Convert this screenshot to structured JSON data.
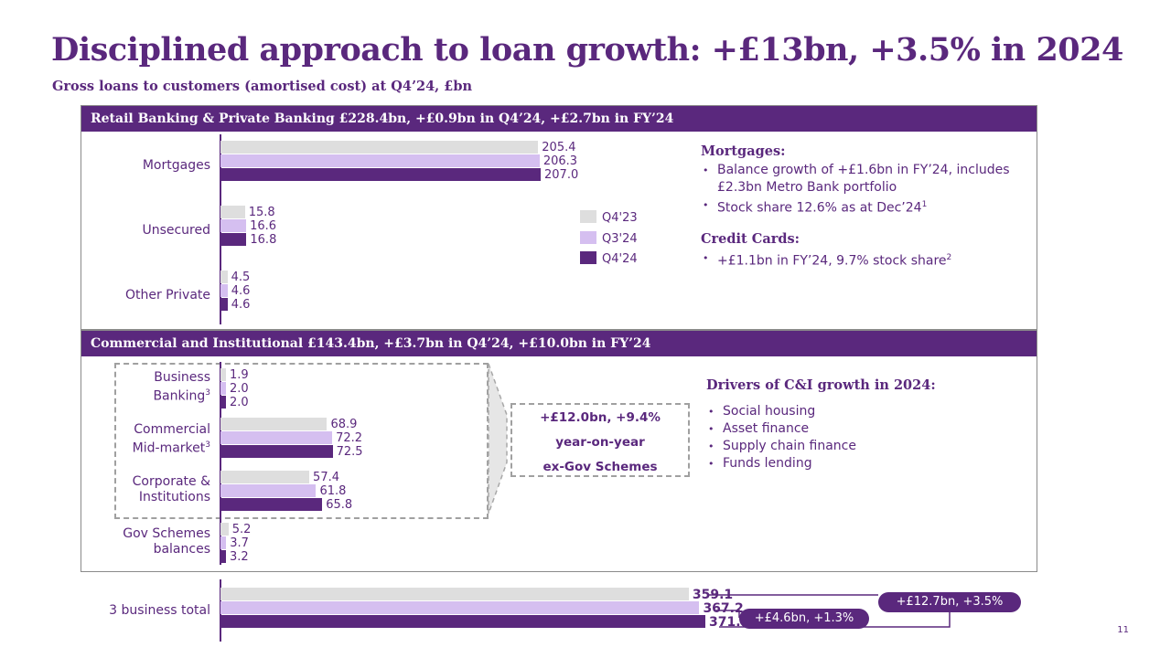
{
  "title": "Disciplined approach to loan growth: +£13bn, +3.5% in 2024",
  "subtitle": "Gross loans to customers (amortised cost) at Q4’24, £bn",
  "page_number": "11",
  "colors": {
    "q4_23": "#dedede",
    "q3_24": "#d5bff0",
    "q4_24": "#5a287d",
    "accent": "#5a287d"
  },
  "legend": [
    {
      "label": "Q4'23",
      "color": "#dedede"
    },
    {
      "label": "Q3'24",
      "color": "#d5bff0"
    },
    {
      "label": "Q4'24",
      "color": "#5a287d"
    }
  ],
  "retail_panel": {
    "header": "Retail Banking & Private Banking £228.4bn, +£0.9bn in Q4’24, +£2.7bn in FY’24",
    "notes": [
      {
        "heading": "Mortgages:",
        "bullets": [
          "Balance growth of +£1.6bn in FY’24, includes £2.3bn Metro Bank portfolio",
          "Stock share 12.6% as at Dec’24"
        ],
        "sups": [
          "",
          "1"
        ]
      },
      {
        "heading": "Credit Cards:",
        "bullets": [
          "+£1.1bn in FY’24, 9.7% stock share"
        ],
        "sups": [
          "2"
        ]
      }
    ]
  },
  "ci_panel": {
    "header": "Commercial and Institutional £143.4bn, +£3.7bn in Q4’24, +£10.0bn in FY’24",
    "callout": [
      "+£12.0bn, +9.4%",
      "year-on-year",
      "ex-Gov Schemes"
    ],
    "drivers_heading": "Drivers of C&I growth in 2024:",
    "drivers": [
      "Social housing",
      "Asset finance",
      "Supply chain finance",
      "Funds lending"
    ]
  },
  "total": {
    "label": "3 business total",
    "pill_fy": "+£12.7bn, +3.5%",
    "pill_q": "+£4.6bn, +1.3%"
  },
  "chart_data": {
    "type": "bar",
    "orientation": "horizontal",
    "series_names": [
      "Q4'23",
      "Q3'24",
      "Q4'24"
    ],
    "categories": [
      {
        "label": "Mortgages",
        "sup": "",
        "values": [
          205.4,
          206.3,
          207.0
        ]
      },
      {
        "label": "Unsecured",
        "sup": "",
        "values": [
          15.8,
          16.6,
          16.8
        ]
      },
      {
        "label": "Other Private",
        "sup": "",
        "values": [
          4.5,
          4.6,
          4.6
        ]
      },
      {
        "label": "Business Banking",
        "sup": "3",
        "values": [
          1.9,
          2.0,
          2.0
        ]
      },
      {
        "label": "Commercial Mid-market",
        "sup": "3",
        "values": [
          68.9,
          72.2,
          72.5
        ]
      },
      {
        "label": "Corporate & Institutions",
        "sup": "",
        "values": [
          57.4,
          61.8,
          65.8
        ]
      },
      {
        "label": "Gov Schemes balances",
        "sup": "",
        "values": [
          5.2,
          3.7,
          3.2
        ]
      },
      {
        "label": "3 business total",
        "sup": "",
        "values": [
          359.1,
          367.2,
          371.8
        ]
      }
    ]
  }
}
